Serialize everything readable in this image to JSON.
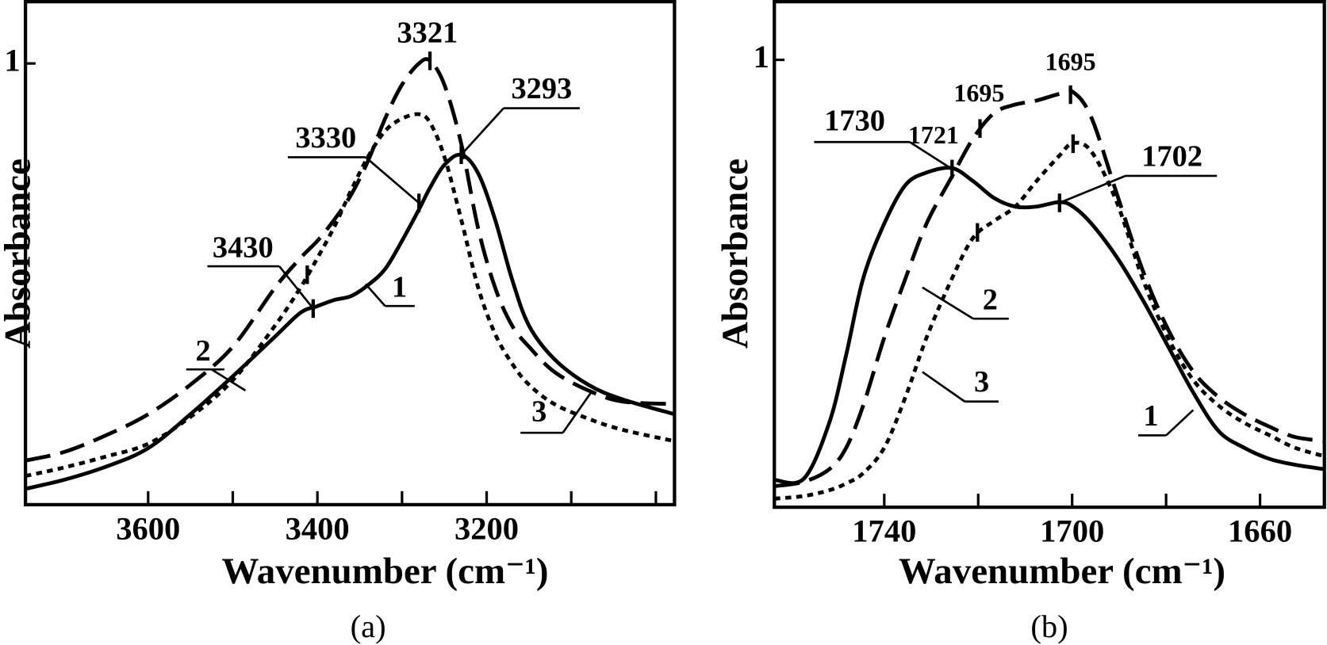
{
  "chart_data": [
    {
      "type": "line",
      "panel_label": "(a)",
      "x_label": "Wavenumber (cm⁻¹)",
      "y_label": "Absorbance",
      "x": [
        3745,
        3700,
        3650,
        3600,
        3550,
        3500,
        3450,
        3420,
        3400,
        3380,
        3360,
        3340,
        3320,
        3300,
        3280,
        3267,
        3250,
        3230,
        3210,
        3190,
        3170,
        3150,
        3120,
        3080,
        3040,
        2978
      ],
      "xlim": [
        3745,
        2978
      ],
      "xticks": [
        3600,
        3400,
        3200
      ],
      "xminor_ticks": [
        3500,
        3300,
        3100,
        3000
      ],
      "ylim": [
        0,
        1.14
      ],
      "yticks": [
        1
      ],
      "series": [
        {
          "name": "1",
          "color": "#000000",
          "dash": "solid",
          "values": [
            0.036,
            0.056,
            0.086,
            0.128,
            0.205,
            0.291,
            0.381,
            0.435,
            0.45,
            0.464,
            0.473,
            0.498,
            0.534,
            0.598,
            0.669,
            0.718,
            0.77,
            0.793,
            0.751,
            0.646,
            0.511,
            0.406,
            0.33,
            0.272,
            0.239,
            0.205
          ]
        },
        {
          "name": "2",
          "color": "#000000",
          "dash": "dashed",
          "values": [
            0.1,
            0.119,
            0.157,
            0.205,
            0.272,
            0.358,
            0.492,
            0.559,
            0.598,
            0.646,
            0.703,
            0.78,
            0.875,
            0.952,
            1.0,
            1.006,
            0.952,
            0.818,
            0.626,
            0.492,
            0.406,
            0.358,
            0.301,
            0.259,
            0.234,
            0.228
          ]
        },
        {
          "name": "3",
          "color": "#000000",
          "dash": "dotted",
          "values": [
            0.065,
            0.084,
            0.109,
            0.138,
            0.199,
            0.282,
            0.406,
            0.492,
            0.559,
            0.63,
            0.713,
            0.789,
            0.847,
            0.875,
            0.885,
            0.866,
            0.789,
            0.646,
            0.492,
            0.387,
            0.32,
            0.272,
            0.228,
            0.195,
            0.17,
            0.144
          ]
        }
      ],
      "annotations": [
        "3321",
        "3330",
        "3293",
        "3430"
      ]
    },
    {
      "type": "line",
      "panel_label": "(b)",
      "x_label": "Wavenumber (cm⁻¹)",
      "y_label": "Absorbance",
      "x": [
        1763.4,
        1757.1,
        1751.7,
        1748.1,
        1744.5,
        1740,
        1735.5,
        1731.0,
        1725.6,
        1721.1,
        1716.6,
        1712.1,
        1707.6,
        1702.7,
        1699.8,
        1695.9,
        1690.5,
        1685.0,
        1679.6,
        1674.2,
        1668.8,
        1663.4,
        1658.0,
        1652.6,
        1646.3
      ],
      "xlim": [
        1763.4,
        1646.3
      ],
      "xticks": [
        1740,
        1700,
        1660
      ],
      "xminor_ticks": [
        1720,
        1680
      ],
      "ylim": [
        0,
        1.13
      ],
      "yticks": [
        1
      ],
      "series": [
        {
          "name": "1",
          "color": "#000000",
          "dash": "solid",
          "values": [
            0.061,
            0.064,
            0.189,
            0.341,
            0.511,
            0.634,
            0.72,
            0.748,
            0.758,
            0.729,
            0.691,
            0.672,
            0.672,
            0.682,
            0.672,
            0.634,
            0.559,
            0.464,
            0.36,
            0.256,
            0.17,
            0.133,
            0.108,
            0.095,
            0.085
          ]
        },
        {
          "name": "2",
          "color": "#000000",
          "dash": "dashed",
          "values": [
            0.047,
            0.057,
            0.085,
            0.133,
            0.227,
            0.379,
            0.511,
            0.634,
            0.739,
            0.824,
            0.881,
            0.9,
            0.909,
            0.924,
            0.928,
            0.871,
            0.701,
            0.53,
            0.398,
            0.303,
            0.246,
            0.208,
            0.18,
            0.157,
            0.148
          ]
        },
        {
          "name": "3",
          "color": "#000000",
          "dash": "dotted",
          "values": [
            0.019,
            0.025,
            0.038,
            0.053,
            0.076,
            0.133,
            0.246,
            0.379,
            0.511,
            0.602,
            0.64,
            0.672,
            0.729,
            0.786,
            0.814,
            0.795,
            0.682,
            0.511,
            0.379,
            0.284,
            0.227,
            0.189,
            0.161,
            0.133,
            0.114
          ]
        }
      ],
      "annotations": [
        "1695",
        "1695",
        "1721",
        "1730",
        "1702"
      ]
    }
  ]
}
